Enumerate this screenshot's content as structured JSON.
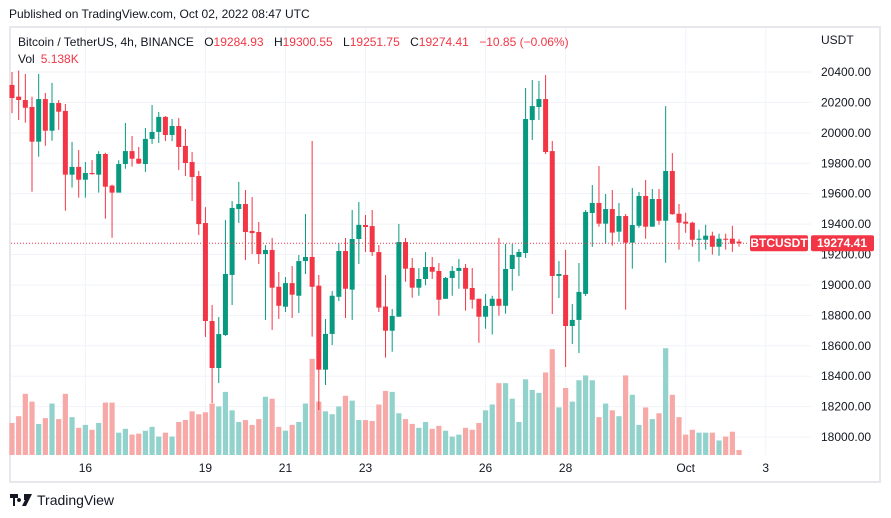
{
  "publish_line": "Published on TradingView.com, Oct 02, 2022 08:47 UTC",
  "legend": {
    "symbol_desc": "Bitcoin / TetherUS, 4h, BINANCE",
    "ohlc": [
      {
        "label": "O",
        "value": "19284.93"
      },
      {
        "label": "H",
        "value": "19300.55"
      },
      {
        "label": "L",
        "value": "19251.75"
      },
      {
        "label": "C",
        "value": "19274.41"
      }
    ],
    "change": "−10.85 (−0.06%)",
    "vol_label": "Vol",
    "vol_value": "5.138K"
  },
  "price_axis": {
    "currency": "USDT",
    "ticks": [
      "20400.00",
      "20200.00",
      "20000.00",
      "19800.00",
      "19600.00",
      "19400.00",
      "19200.00",
      "19000.00",
      "18800.00",
      "18600.00",
      "18400.00",
      "18200.00",
      "18000.00"
    ]
  },
  "last_price": {
    "symbol": "BTCUSDT",
    "value": "19274.41"
  },
  "time_axis": {
    "ticks": [
      {
        "label": "16",
        "date": "2022-09-16"
      },
      {
        "label": "19",
        "date": "2022-09-19"
      },
      {
        "label": "21",
        "date": "2022-09-21"
      },
      {
        "label": "23",
        "date": "2022-09-23"
      },
      {
        "label": "26",
        "date": "2022-09-26"
      },
      {
        "label": "28",
        "date": "2022-09-28"
      },
      {
        "label": "Oct",
        "date": "2022-10-01"
      },
      {
        "label": "3",
        "date": "2022-10-03"
      }
    ]
  },
  "footer": {
    "brand": "TradingView",
    "logo_icon": "tradingview-logo-icon"
  },
  "colors": {
    "up": "#089981",
    "down": "#f23645",
    "volume_up": "#92d2cc",
    "volume_down": "#f7a9a7",
    "grid": "#f0f3fa",
    "last_price_label": "#f23645"
  },
  "chart_data": {
    "type": "candlestick",
    "symbol": "BTCUSDT",
    "interval": "4h",
    "ylim": [
      17880,
      20480
    ],
    "grid": true,
    "candles_ohlc": [
      [
        20315,
        20400,
        20130,
        20229
      ],
      [
        20238,
        20410,
        20085,
        20216
      ],
      [
        20216,
        20387,
        20067,
        20165
      ],
      [
        20170,
        20238,
        19613,
        19942
      ],
      [
        19942,
        20387,
        19843,
        20222
      ],
      [
        20222,
        20262,
        19915,
        20014
      ],
      [
        20014,
        20328,
        19948,
        20196
      ],
      [
        20196,
        20216,
        20019,
        20139
      ],
      [
        20144,
        20190,
        19488,
        19725
      ],
      [
        19725,
        19940,
        19640,
        19776
      ],
      [
        19776,
        19887,
        19574,
        19692
      ],
      [
        19692,
        19808,
        19574,
        19736
      ],
      [
        19736,
        19821,
        19725,
        19728
      ],
      [
        19725,
        19880,
        19607,
        19861
      ],
      [
        19861,
        19869,
        19436,
        19646
      ],
      [
        19653,
        19659,
        19310,
        19607
      ],
      [
        19607,
        19820,
        19607,
        19795
      ],
      [
        19795,
        20065,
        19764,
        19880
      ],
      [
        19880,
        19979,
        19778,
        19830
      ],
      [
        19830,
        19907,
        19795,
        19798
      ],
      [
        19795,
        20032,
        19743,
        19960
      ],
      [
        19960,
        20183,
        19927,
        20006
      ],
      [
        20006,
        20137,
        19933,
        20105
      ],
      [
        20105,
        20110,
        19946,
        19986
      ],
      [
        19986,
        20091,
        19946,
        20045
      ],
      [
        20045,
        20097,
        19756,
        19907
      ],
      [
        19914,
        20025,
        19716,
        19802
      ],
      [
        19808,
        19874,
        19552,
        19710
      ],
      [
        19716,
        19749,
        19328,
        19400
      ],
      [
        19407,
        19512,
        18658,
        18763
      ],
      [
        18763,
        18868,
        18224,
        18454
      ],
      [
        18454,
        18789,
        18355,
        18677
      ],
      [
        18671,
        19427,
        18664,
        19072
      ],
      [
        19066,
        19552,
        18868,
        19506
      ],
      [
        19499,
        19677,
        19407,
        19532
      ],
      [
        19532,
        19624,
        19164,
        19348
      ],
      [
        19355,
        19578,
        19203,
        19341
      ],
      [
        19348,
        19414,
        19138,
        19203
      ],
      [
        19203,
        19262,
        18770,
        19230
      ],
      [
        19230,
        19309,
        18704,
        18982
      ],
      [
        18988,
        19085,
        18776,
        18863
      ],
      [
        18857,
        19052,
        18822,
        19012
      ],
      [
        19012,
        19124,
        18783,
        18936
      ],
      [
        18929,
        19197,
        18816,
        19157
      ],
      [
        19157,
        19466,
        19072,
        19184
      ],
      [
        19184,
        19946,
        18660,
        18988
      ],
      [
        18995,
        19065,
        18178,
        18443
      ],
      [
        18443,
        18776,
        18342,
        18678
      ],
      [
        18678,
        18960,
        18605,
        18929
      ],
      [
        18922,
        19276,
        18894,
        19223
      ],
      [
        19223,
        19309,
        18783,
        18975
      ],
      [
        18969,
        19493,
        18770,
        19302
      ],
      [
        19302,
        19545,
        19138,
        19395
      ],
      [
        19394,
        19460,
        19217,
        19381
      ],
      [
        19387,
        19493,
        19190,
        19216
      ],
      [
        19216,
        19262,
        18822,
        18851
      ],
      [
        18858,
        19065,
        18522,
        18699
      ],
      [
        18699,
        18842,
        18561,
        18796
      ],
      [
        18791,
        19401,
        18791,
        19282
      ],
      [
        19282,
        19309,
        19021,
        19107
      ],
      [
        19112,
        19177,
        18916,
        18982
      ],
      [
        18982,
        19111,
        18929,
        19039
      ],
      [
        19039,
        19216,
        18998,
        19118
      ],
      [
        19118,
        19184,
        19039,
        19087
      ],
      [
        19092,
        19144,
        18798,
        18903
      ],
      [
        18909,
        19052,
        18909,
        19046
      ],
      [
        19046,
        19124,
        18929,
        19092
      ],
      [
        19092,
        19171,
        18975,
        19112
      ],
      [
        19112,
        19138,
        18831,
        18975
      ],
      [
        18980,
        19111,
        18844,
        18903
      ],
      [
        18909,
        18909,
        18620,
        18791
      ],
      [
        18791,
        18941,
        18712,
        18862
      ],
      [
        18862,
        18929,
        18674,
        18909
      ],
      [
        18909,
        19309,
        18798,
        18863
      ],
      [
        18863,
        19269,
        18811,
        19105
      ],
      [
        19105,
        19269,
        18962,
        19197
      ],
      [
        19184,
        19236,
        19059,
        19217
      ],
      [
        19210,
        20295,
        19177,
        20091
      ],
      [
        20084,
        20347,
        19953,
        20176
      ],
      [
        20170,
        20341,
        20084,
        20222
      ],
      [
        20222,
        20380,
        19861,
        19874
      ],
      [
        19880,
        19946,
        18809,
        19059
      ],
      [
        19059,
        19157,
        18914,
        19072
      ],
      [
        19066,
        19230,
        18460,
        18730
      ],
      [
        18730,
        18875,
        18612,
        18770
      ],
      [
        18770,
        19144,
        18552,
        18954
      ],
      [
        18941,
        19493,
        18927,
        19480
      ],
      [
        19473,
        19657,
        19250,
        19539
      ],
      [
        19539,
        19782,
        19383,
        19403
      ],
      [
        19403,
        19598,
        19271,
        19499
      ],
      [
        19499,
        19624,
        19258,
        19344
      ],
      [
        19350,
        19539,
        19284,
        19453
      ],
      [
        19453,
        19466,
        18837,
        19278
      ],
      [
        19278,
        19637,
        19107,
        19394
      ],
      [
        19389,
        19611,
        19376,
        19585
      ],
      [
        19585,
        19690,
        19304,
        19383
      ],
      [
        19383,
        19631,
        19383,
        19565
      ],
      [
        19565,
        19631,
        19396,
        19422
      ],
      [
        19422,
        20176,
        19146,
        19749
      ],
      [
        19749,
        19867,
        19462,
        19465
      ],
      [
        19468,
        19532,
        19232,
        19409
      ],
      [
        19416,
        19475,
        19343,
        19403
      ],
      [
        19409,
        19416,
        19251,
        19297
      ],
      [
        19297,
        19363,
        19153,
        19304
      ],
      [
        19297,
        19396,
        19232,
        19324
      ],
      [
        19324,
        19350,
        19199,
        19251
      ],
      [
        19251,
        19337,
        19192,
        19304
      ],
      [
        19304,
        19337,
        19232,
        19297
      ],
      [
        19304,
        19389,
        19218,
        19271
      ],
      [
        19284.93,
        19300.55,
        19251.75,
        19274.41
      ]
    ],
    "volume_k": [
      33,
      40,
      63,
      55,
      32,
      38,
      53,
      37,
      63,
      39,
      28,
      31,
      26,
      33,
      54,
      54,
      23,
      27,
      21,
      22,
      25,
      29,
      19,
      23,
      19,
      34,
      36,
      45,
      42,
      44,
      53,
      50,
      65,
      46,
      34,
      36,
      31,
      37,
      60,
      58,
      29,
      25,
      31,
      34,
      53,
      99,
      55,
      45,
      42,
      50,
      61,
      56,
      36,
      36,
      35,
      52,
      66,
      65,
      43,
      37,
      32,
      28,
      34,
      27,
      30,
      25,
      19,
      21,
      28,
      26,
      33,
      46,
      52,
      74,
      74,
      58,
      34,
      78,
      67,
      64,
      85,
      109,
      49,
      69,
      55,
      77,
      82,
      77,
      39,
      53,
      46,
      40,
      82,
      62,
      31,
      49,
      37,
      43,
      110,
      62,
      39,
      21,
      26,
      23,
      23,
      23,
      15,
      19,
      24,
      5.138
    ]
  }
}
